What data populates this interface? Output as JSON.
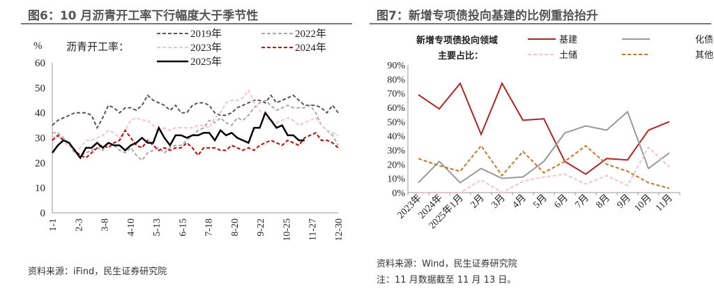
{
  "chart_data": [
    {
      "type": "line",
      "title": "图6：10 月沥青开工率下行幅度大于季节性",
      "ylabel": "%",
      "legend_title": "沥青开工率：",
      "ylim": [
        0,
        60
      ],
      "yticks": [
        0,
        10,
        20,
        30,
        40,
        50,
        60
      ],
      "xtick_labels": [
        "1-1",
        "2-3",
        "3-8",
        "4-10",
        "5-13",
        "6-15",
        "7-18",
        "8-20",
        "9-22",
        "10-25",
        "11-27",
        "12-30"
      ],
      "n_points": 52,
      "series": [
        {
          "name": "2019年",
          "color": "#555555",
          "dash": "5,3",
          "width": 2,
          "values": [
            35,
            37,
            38,
            39,
            40,
            40,
            40,
            39,
            34,
            38,
            43,
            42,
            40,
            42,
            42,
            41,
            43,
            47,
            45,
            44,
            43,
            41,
            43,
            40,
            40,
            43,
            44,
            44,
            43,
            40,
            39,
            39,
            40,
            42,
            43,
            44,
            45,
            45,
            44,
            47,
            44,
            45,
            46,
            47,
            45,
            43,
            43,
            43,
            42,
            40,
            43,
            40
          ]
        },
        {
          "name": "2022年",
          "color": "#aaaaaa",
          "dash": "5,3",
          "width": 2,
          "values": [
            32,
            32,
            30,
            27,
            24,
            23,
            24,
            25,
            26,
            25,
            28,
            27,
            25,
            24,
            26,
            23,
            21,
            24,
            25,
            26,
            24,
            26,
            27,
            27,
            29,
            31,
            33,
            34,
            37,
            36,
            38,
            36,
            35,
            38,
            37,
            39,
            42,
            44,
            45,
            43,
            41,
            42,
            43,
            42,
            42,
            42,
            43,
            40,
            35,
            33,
            31,
            27
          ]
        },
        {
          "name": "2023年",
          "color": "#f2c4cc",
          "dash": "5,3",
          "width": 2,
          "values": [
            30,
            31,
            28,
            27,
            25,
            26,
            29,
            29,
            30,
            31,
            33,
            32,
            30,
            33,
            37,
            38,
            37,
            37,
            35,
            32,
            34,
            33,
            34,
            34,
            34,
            34,
            35,
            35,
            34,
            38,
            40,
            44,
            45,
            45,
            46,
            49,
            44,
            41,
            38,
            37,
            36,
            37,
            38,
            37,
            35,
            36,
            37,
            38,
            35,
            33,
            32,
            31
          ]
        },
        {
          "name": "2024年",
          "color": "#c00000",
          "dash": "5,3",
          "width": 2,
          "values": [
            29,
            31,
            29,
            28,
            25,
            23,
            22,
            24,
            26,
            27,
            26,
            28,
            29,
            33,
            30,
            27,
            26,
            29,
            27,
            25,
            26,
            25,
            26,
            26,
            28,
            26,
            23,
            26,
            26,
            26,
            25,
            25,
            27,
            26,
            25,
            26,
            25,
            27,
            28,
            29,
            28,
            27,
            29,
            28,
            27,
            30,
            31,
            32,
            29,
            29,
            28,
            26
          ]
        },
        {
          "name": "2025年",
          "color": "#000000",
          "dash": "",
          "width": 2.5,
          "values": [
            24,
            27,
            29,
            28,
            25,
            22,
            26,
            26,
            28,
            26,
            28,
            27,
            27,
            25,
            27,
            28,
            30,
            28,
            28,
            34,
            30,
            27,
            31,
            31,
            30,
            31,
            31,
            32,
            32,
            29,
            33,
            31,
            32,
            30,
            29,
            28,
            34,
            34,
            40,
            37,
            34,
            35,
            31,
            31,
            29,
            29
          ]
        }
      ],
      "source": "资料来源：iFind，民生证券研究院"
    },
    {
      "type": "line",
      "title": "图7：新增专项债投向基建的比例重拾抬升",
      "legend_title": [
        "新增专项债投向领域",
        "主要占比："
      ],
      "ylim": [
        0,
        90
      ],
      "yticks": [
        "0%",
        "10%",
        "20%",
        "30%",
        "40%",
        "50%",
        "60%",
        "70%",
        "80%",
        "90%"
      ],
      "categories": [
        "2023年",
        "2024年",
        "2025年1月",
        "2月",
        "3月",
        "4月",
        "5月",
        "6月",
        "7月",
        "8月",
        "9月",
        "10月",
        "11月"
      ],
      "series": [
        {
          "name": "基建",
          "color": "#b22222",
          "dash": "",
          "width": 2,
          "values": [
            69,
            59,
            77,
            41,
            77,
            51,
            52,
            22,
            13,
            24,
            23,
            44,
            50
          ]
        },
        {
          "name": "化债",
          "color": "#999999",
          "dash": "",
          "width": 2,
          "values": [
            7,
            22,
            7,
            17,
            10,
            11,
            22,
            42,
            47,
            44,
            57,
            17,
            28
          ]
        },
        {
          "name": "土储",
          "color": "#f2c4cc",
          "dash": "5,3",
          "width": 2,
          "values": [
            0,
            0,
            0,
            9,
            0,
            8,
            11,
            13,
            6,
            12,
            5,
            32,
            18
          ]
        },
        {
          "name": "其他",
          "color": "#c07830",
          "dash": "5,3",
          "width": 2,
          "values": [
            24,
            19,
            15,
            33,
            12,
            29,
            14,
            22,
            33,
            20,
            15,
            7,
            3
          ]
        }
      ],
      "source": "资料来源：Wind，民生证券研究院",
      "note": "注：11 月数据截至 11 月 13 日。"
    }
  ]
}
